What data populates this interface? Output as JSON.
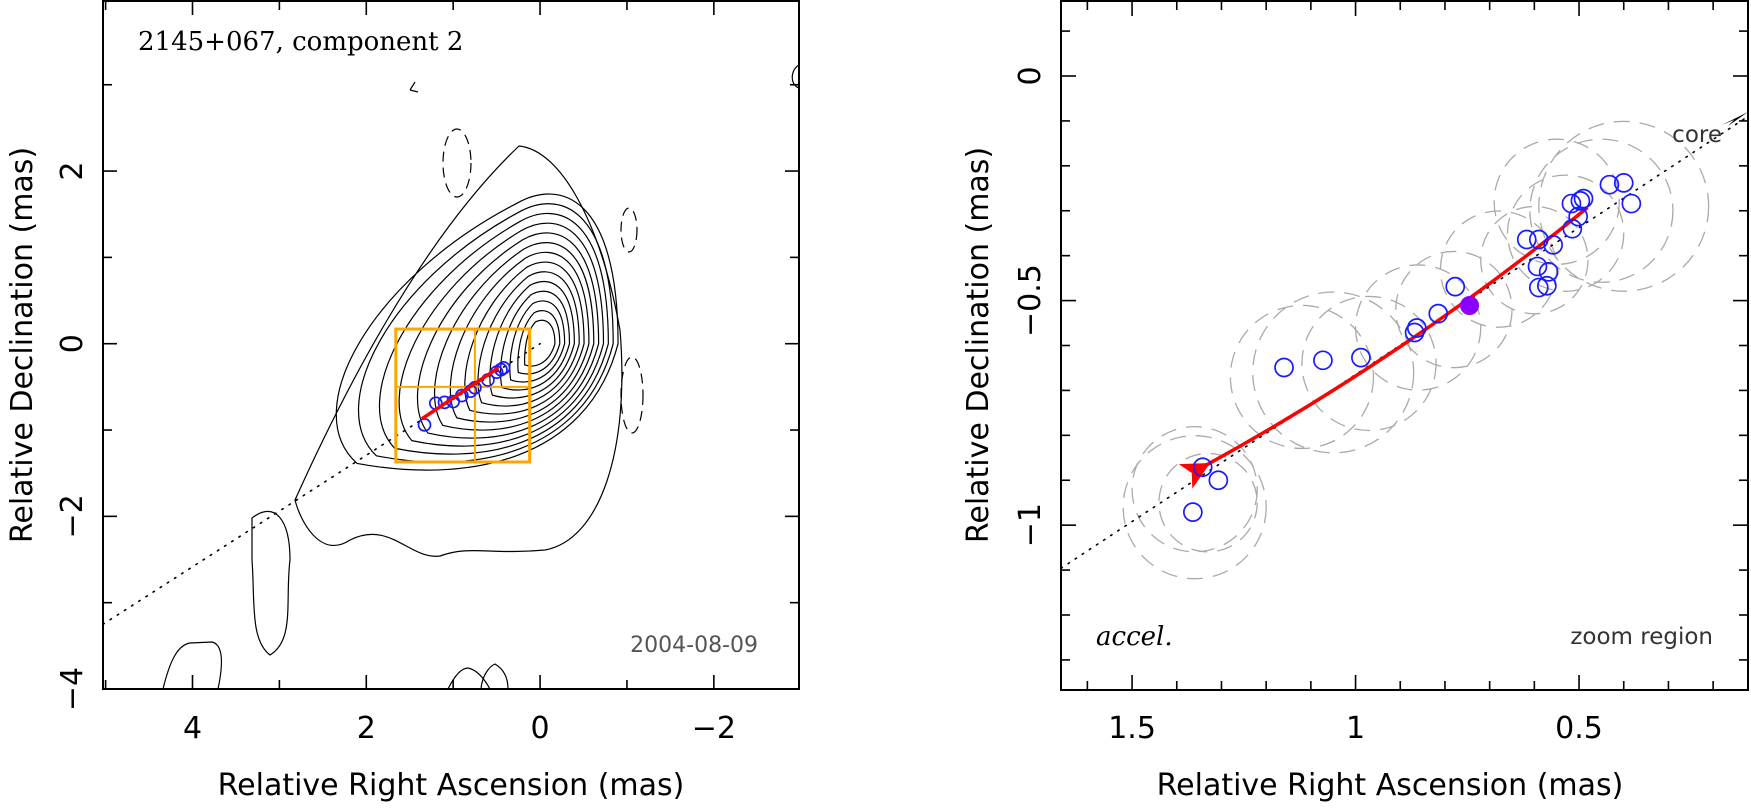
{
  "chart_data": [
    {
      "type": "contour",
      "title": "2145+067, component 2",
      "xlabel": "Relative Right Ascension (mas)",
      "ylabel": "Relative Declination (mas)",
      "xlim": [
        5.03,
        -2.98
      ],
      "ylim": [
        -4.0,
        3.97
      ],
      "xticks": [
        4,
        2,
        0,
        -2
      ],
      "xtick_labels": [
        "4",
        "2",
        "0",
        "−2"
      ],
      "yticks": [
        2,
        0,
        -2,
        -4
      ],
      "ytick_labels": [
        "2",
        "0",
        "−2",
        "−4"
      ],
      "epoch_label": "2004-08-09",
      "colors": {
        "contours": "#000000",
        "zoom_box": "#ffa500",
        "trajectory": "#ff0000",
        "points": "#1a1aff"
      },
      "zoom_region": {
        "ra": [
          1.66,
          0.12
        ],
        "dec": [
          0.17,
          -1.37
        ],
        "divider_ra": 0.75,
        "divider_dec": -0.5
      },
      "ridge_line": {
        "from": [
          5.03,
          -3.25
        ],
        "to": [
          0.0,
          0.0
        ]
      },
      "core_peak": [
        0.0,
        0.0
      ],
      "contour_levels_count": 14,
      "trajectory": {
        "start": [
          0.48,
          -0.28
        ],
        "end": [
          1.36,
          -0.87
        ]
      },
      "points": [
        [
          1.33,
          -0.94
        ],
        [
          1.2,
          -0.69
        ],
        [
          1.1,
          -0.68
        ],
        [
          1.0,
          -0.67
        ],
        [
          0.9,
          -0.6
        ],
        [
          0.8,
          -0.55
        ],
        [
          0.75,
          -0.51
        ],
        [
          0.6,
          -0.42
        ],
        [
          0.5,
          -0.33
        ],
        [
          0.45,
          -0.3
        ],
        [
          0.42,
          -0.28
        ]
      ]
    },
    {
      "type": "scatter",
      "title": "zoom region",
      "xlabel": "Relative Right Ascension (mas)",
      "ylabel": "Relative Declination (mas)",
      "xlim": [
        1.659,
        0.122
      ],
      "ylim": [
        -1.367,
        0.167
      ],
      "xticks": [
        1.5,
        1.0,
        0.5
      ],
      "xtick_labels": [
        "1.5",
        "1",
        "0.5"
      ],
      "yticks": [
        0,
        -0.5,
        -1
      ],
      "ytick_labels": [
        "0",
        "−0.5",
        "−1"
      ],
      "annotations": {
        "core": "core",
        "accel": "accel.",
        "zoom": "zoom region"
      },
      "colors": {
        "points": "#1a1aff",
        "highlight": "#8a00ff",
        "trajectory": "#ff0000",
        "ghost": "#aaaaaa"
      },
      "points": [
        {
          "ra": 1.364,
          "dec": -0.971
        },
        {
          "ra": 1.342,
          "dec": -0.871
        },
        {
          "ra": 1.307,
          "dec": -0.9
        },
        {
          "ra": 1.16,
          "dec": -0.649
        },
        {
          "ra": 1.073,
          "dec": -0.633
        },
        {
          "ra": 0.988,
          "dec": -0.627
        },
        {
          "ra": 0.868,
          "dec": -0.571
        },
        {
          "ra": 0.863,
          "dec": -0.561
        },
        {
          "ra": 0.815,
          "dec": -0.529
        },
        {
          "ra": 0.777,
          "dec": -0.469
        },
        {
          "ra": 0.617,
          "dec": -0.364
        },
        {
          "ra": 0.59,
          "dec": -0.364
        },
        {
          "ra": 0.558,
          "dec": -0.376
        },
        {
          "ra": 0.593,
          "dec": -0.424
        },
        {
          "ra": 0.568,
          "dec": -0.436
        },
        {
          "ra": 0.59,
          "dec": -0.471
        },
        {
          "ra": 0.572,
          "dec": -0.467
        },
        {
          "ra": 0.515,
          "dec": -0.34
        },
        {
          "ra": 0.502,
          "dec": -0.313
        },
        {
          "ra": 0.517,
          "dec": -0.284
        },
        {
          "ra": 0.497,
          "dec": -0.278
        },
        {
          "ra": 0.49,
          "dec": -0.273
        },
        {
          "ra": 0.432,
          "dec": -0.242
        },
        {
          "ra": 0.4,
          "dec": -0.238
        },
        {
          "ra": 0.383,
          "dec": -0.284
        }
      ],
      "highlight_point": {
        "ra": 0.745,
        "dec": -0.511
      },
      "trajectory": {
        "start": [
          0.481,
          -0.293
        ],
        "end": [
          1.339,
          -0.869
        ]
      },
      "ridge_line": {
        "from": [
          1.659,
          -1.096
        ],
        "to": [
          0.122,
          -0.09
        ]
      },
      "ghost_circles": [
        {
          "ra": 1.36,
          "dec": -0.92,
          "r": 0.14
        },
        {
          "ra": 1.33,
          "dec": -0.95,
          "r": 0.11
        },
        {
          "ra": 1.36,
          "dec": -0.96,
          "r": 0.16
        },
        {
          "ra": 1.12,
          "dec": -0.67,
          "r": 0.16
        },
        {
          "ra": 1.05,
          "dec": -0.66,
          "r": 0.18
        },
        {
          "ra": 0.97,
          "dec": -0.64,
          "r": 0.15
        },
        {
          "ra": 0.86,
          "dec": -0.56,
          "r": 0.14
        },
        {
          "ra": 0.78,
          "dec": -0.52,
          "r": 0.13
        },
        {
          "ra": 0.68,
          "dec": -0.43,
          "r": 0.13
        },
        {
          "ra": 0.6,
          "dec": -0.41,
          "r": 0.12
        },
        {
          "ra": 0.53,
          "dec": -0.35,
          "r": 0.13
        },
        {
          "ra": 0.45,
          "dec": -0.3,
          "r": 0.16
        },
        {
          "ra": 0.4,
          "dec": -0.29,
          "r": 0.19
        },
        {
          "ra": 0.55,
          "dec": -0.28,
          "r": 0.14
        }
      ]
    }
  ]
}
